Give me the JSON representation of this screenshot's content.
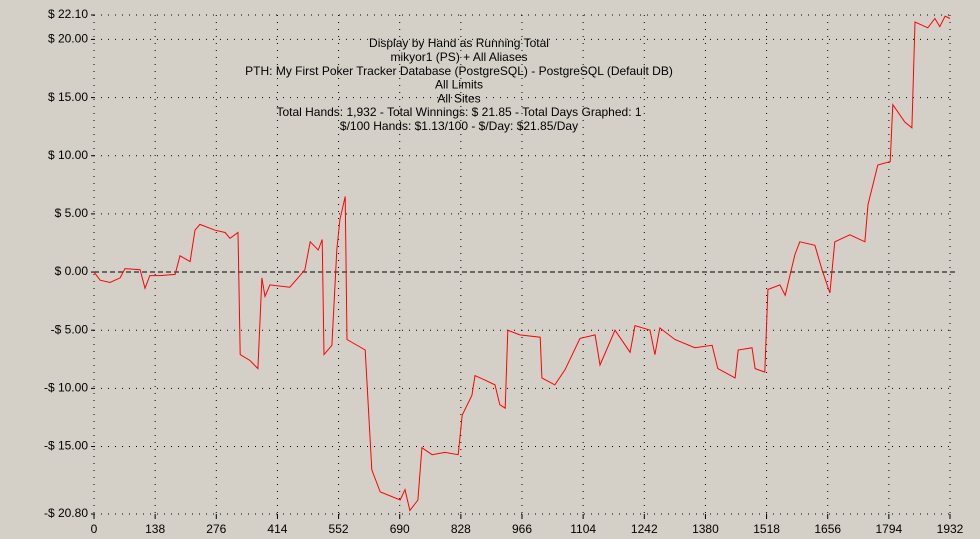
{
  "chart_data": {
    "type": "line",
    "annotations": [
      "Display by Hand as Running Total",
      "mikyor1 (PS) + All Aliases",
      "PTH: My First Poker Tracker Database (PostgreSQL) - PostgreSQL (Default DB)",
      "All Limits",
      "All Sites",
      "Total Hands: 1,932 - Total Winnings: $ 21.85 - Total Days Graphed: 1",
      "$/100 Hands: $1.13/100 - $/Day: $21.85/Day"
    ],
    "x": [
      0,
      14,
      36,
      59,
      70,
      104,
      115,
      126,
      149,
      183,
      194,
      217,
      228,
      239,
      273,
      296,
      307,
      325,
      330,
      352,
      370,
      379,
      386,
      397,
      442,
      465,
      476,
      488,
      506,
      515,
      519,
      537,
      548,
      555,
      567,
      571,
      612,
      627,
      646,
      691,
      702,
      713,
      731,
      740,
      763,
      792,
      822,
      831,
      853,
      860,
      883,
      905,
      916,
      928,
      934,
      961,
      1007,
      1011,
      1040,
      1063,
      1097,
      1131,
      1142,
      1176,
      1210,
      1221,
      1255,
      1266,
      1277,
      1311,
      1356,
      1395,
      1408,
      1447,
      1454,
      1485,
      1492,
      1514,
      1521,
      1548,
      1560,
      1582,
      1593,
      1627,
      1643,
      1661,
      1672,
      1706,
      1740,
      1747,
      1769,
      1797,
      1803,
      1830,
      1846,
      1853,
      1882,
      1898,
      1909,
      1921,
      1932
    ],
    "series": [
      {
        "color": "#ff0000",
        "values": [
          0,
          -0.7,
          -0.9,
          -0.5,
          0.3,
          0.2,
          -1.4,
          -0.3,
          -0.3,
          -0.2,
          1.4,
          0.9,
          3.6,
          4.1,
          3.6,
          3.4,
          2.9,
          3.4,
          -7.1,
          -7.6,
          -8.3,
          -0.5,
          -2.1,
          -1.1,
          -1.3,
          -0.3,
          0.2,
          2.6,
          1.9,
          2.8,
          -7.1,
          -6.3,
          1.9,
          4.5,
          6.5,
          -5.8,
          -6.7,
          -17,
          -18.9,
          -19.6,
          -18.7,
          -20.5,
          -19.6,
          -15.1,
          -15.7,
          -15.5,
          -15.7,
          -12.3,
          -10.6,
          -8.9,
          -9.3,
          -9.7,
          -11.4,
          -11.7,
          -5.0,
          -5.4,
          -5.6,
          -9.1,
          -9.7,
          -8.4,
          -5.7,
          -5.4,
          -8,
          -5,
          -6.9,
          -4.6,
          -5,
          -7.1,
          -4.8,
          -5.8,
          -6.5,
          -6.3,
          -8.3,
          -9.1,
          -6.7,
          -6.5,
          -8.3,
          -8.6,
          -1.5,
          -1.1,
          -2.0,
          1.5,
          2.6,
          2.3,
          0.2,
          -1.8,
          2.6,
          3.2,
          2.6,
          5.8,
          9.2,
          9.5,
          14.4,
          12.9,
          12.4,
          21.5,
          21.0,
          21.8,
          21.1,
          22.0,
          21.8
        ]
      }
    ],
    "xlim": [
      0,
      1932
    ],
    "xticks": [
      0,
      138,
      276,
      414,
      552,
      690,
      828,
      966,
      1104,
      1242,
      1380,
      1518,
      1656,
      1794,
      1932
    ],
    "ylim": [
      -20.8,
      22.1
    ],
    "yticks": [
      {
        "value": 22.1,
        "label": "$ 22.10"
      },
      {
        "value": 20,
        "label": "$ 20.00"
      },
      {
        "value": 15,
        "label": "$ 15.00"
      },
      {
        "value": 10,
        "label": "$ 10.00"
      },
      {
        "value": 5,
        "label": "$ 5.00"
      },
      {
        "value": 0,
        "label": "$ 0.00"
      },
      {
        "value": -5,
        "label": "-$ 5.00"
      },
      {
        "value": -10,
        "label": "-$ 10.00"
      },
      {
        "value": -15,
        "label": "-$ 15.00"
      },
      {
        "value": -20.8,
        "label": "-$ 20.80"
      }
    ],
    "grid": true
  }
}
